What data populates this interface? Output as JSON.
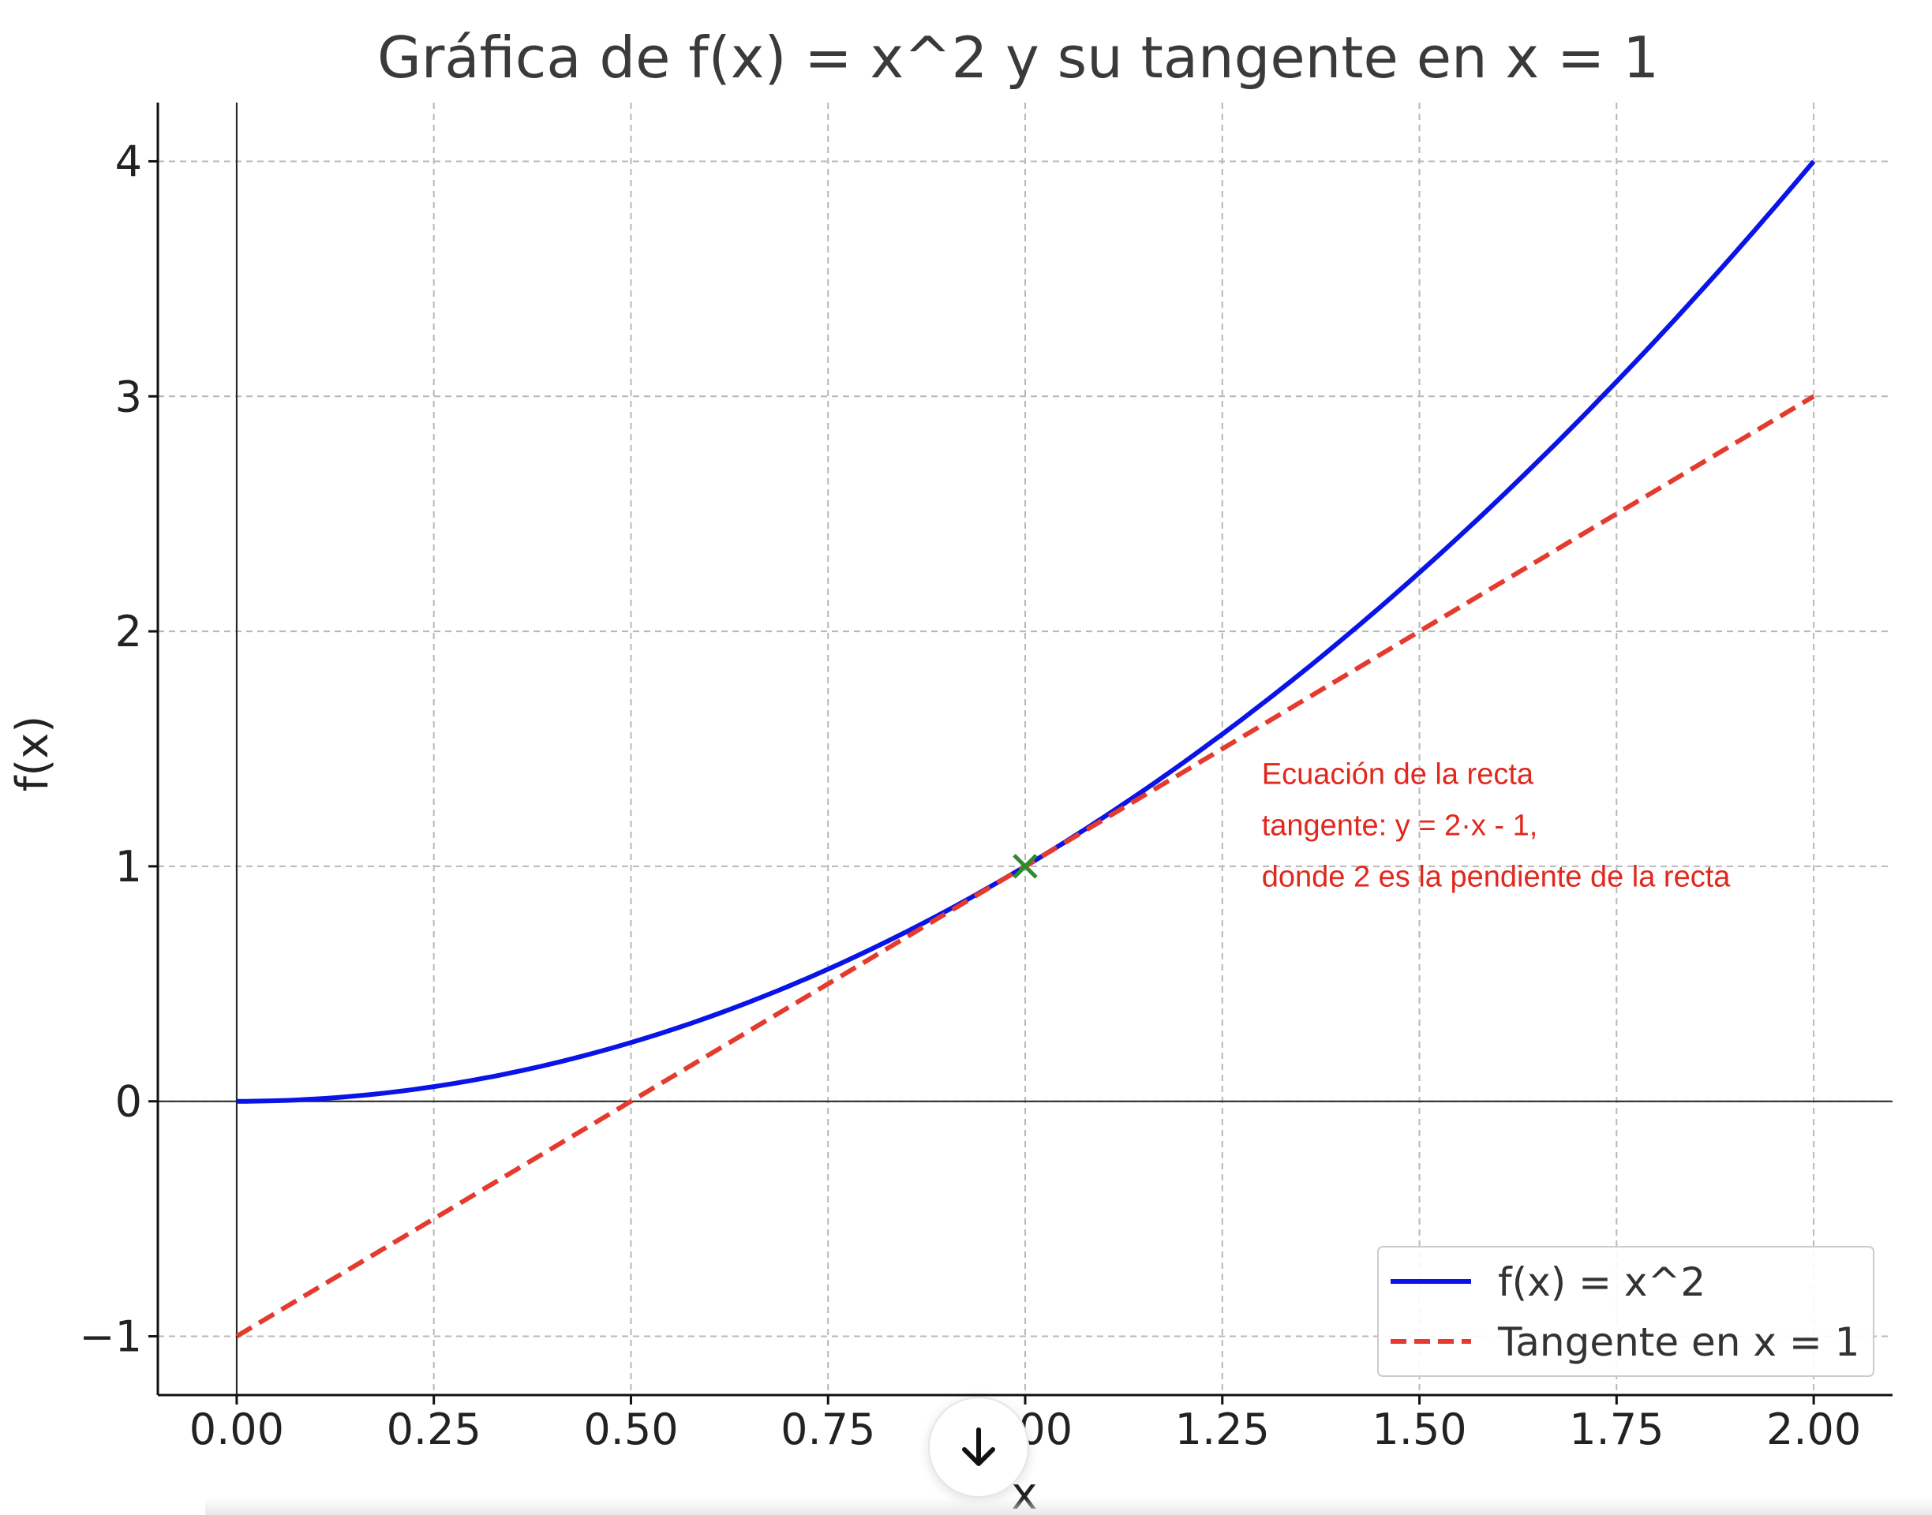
{
  "chart_data": {
    "type": "line",
    "title": "Gráfica de f(x) = x^2 y su tangente en x = 1",
    "xlabel": "x",
    "ylabel": "f(x)",
    "xlim": [
      -0.1,
      2.1
    ],
    "ylim": [
      -1.25,
      4.25
    ],
    "xticks": [
      0,
      0.25,
      0.5,
      0.75,
      1.0,
      1.25,
      1.5,
      1.75,
      2.0
    ],
    "xtick_labels": [
      "0.00",
      "0.25",
      "0.50",
      "0.75",
      "1.00",
      "1.25",
      "1.50",
      "1.75",
      "2.00"
    ],
    "yticks": [
      -1,
      0,
      1,
      2,
      3,
      4
    ],
    "ytick_labels": [
      "−1",
      "0",
      "1",
      "2",
      "3",
      "4"
    ],
    "grid": true,
    "legend_position": "lower-right",
    "series": [
      {
        "name": "f(x) = x^2",
        "style": "solid",
        "color": "#0a14e6",
        "x": [
          0,
          0.25,
          0.5,
          0.75,
          1.0,
          1.25,
          1.5,
          1.75,
          2.0
        ],
        "y": [
          0,
          0.0625,
          0.25,
          0.5625,
          1.0,
          1.5625,
          2.25,
          3.0625,
          4.0
        ]
      },
      {
        "name": "Tangente en x = 1",
        "style": "dashed",
        "color": "#e53a2e",
        "x": [
          0,
          0.5,
          1.0,
          1.5,
          2.0
        ],
        "y": [
          -1,
          0,
          1,
          2,
          3
        ]
      }
    ],
    "markers": [
      {
        "x": 1,
        "y": 1,
        "symbol": "x",
        "color": "#2e8b2e"
      }
    ],
    "annotation": {
      "x": 1.3,
      "y": 1.35,
      "color": "#e0281e",
      "lines": [
        "Ecuación de la recta",
        "tangente: y = 2·x - 1,",
        "donde 2 es la pendiente de la recta"
      ]
    }
  },
  "ui": {
    "scroll_button_icon": "arrow-down-icon"
  }
}
